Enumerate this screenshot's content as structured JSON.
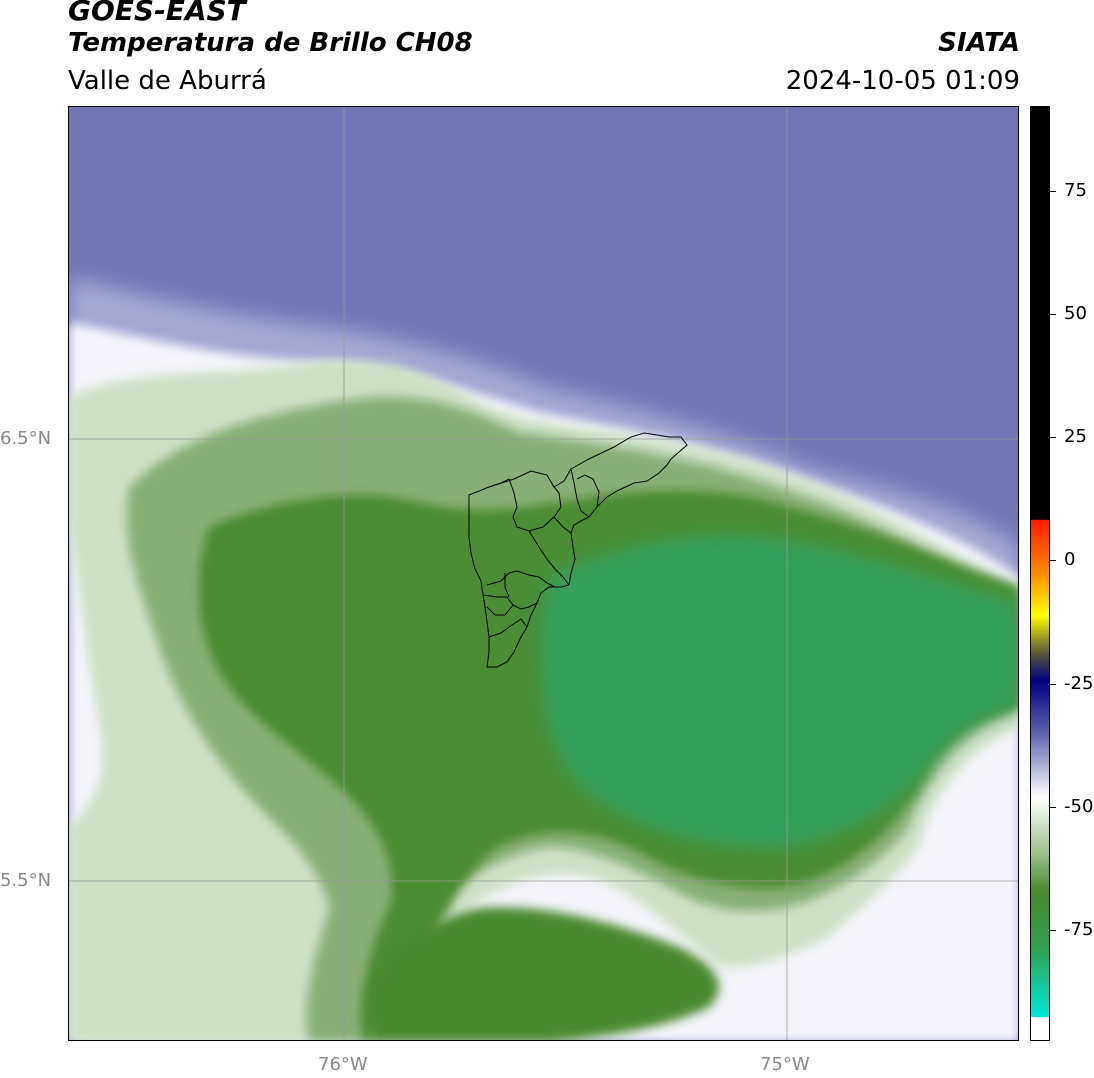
{
  "header": {
    "line1": "GOES-EAST",
    "line2": "Temperatura de Brillo CH08",
    "line3": "Valle de Aburrá",
    "org": "SIATA",
    "datetime": "2024-10-05 01:09"
  },
  "map": {
    "lat_labels": [
      "6.5°N",
      "5.5°N"
    ],
    "lon_labels": [
      "76°W",
      "75°W"
    ],
    "colors": {
      "cold_blue": "#6b6fb2",
      "light_blue": "#a8aad4",
      "white": "#ffffff",
      "pale_green": "#c9dcc0",
      "mid_green": "#7ea86a",
      "dark_green": "#468a2c",
      "teal_green": "#2f9e5a"
    }
  },
  "colorbar": {
    "tick_labels": [
      "75",
      "50",
      "25",
      "0",
      "-25",
      "-50",
      "-75"
    ]
  }
}
